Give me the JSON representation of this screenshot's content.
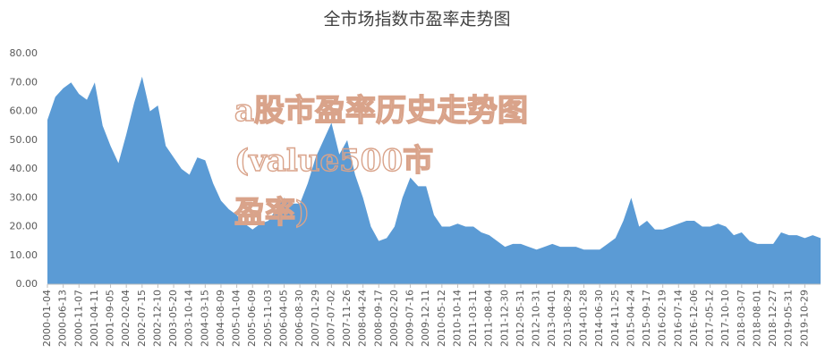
{
  "chart_data": {
    "type": "area",
    "title": "全市场指数市盈率走势图",
    "watermark": [
      "a股市盈率历史走势图",
      "(value500市",
      "盈率)"
    ],
    "color": "#5b9bd5",
    "grid": false,
    "ylim": [
      0,
      80
    ],
    "yticks": [
      {
        "value": 0,
        "label": "0.00"
      },
      {
        "value": 10,
        "label": "10.00"
      },
      {
        "value": 20,
        "label": "20.00"
      },
      {
        "value": 30,
        "label": "30.00"
      },
      {
        "value": 40,
        "label": "40.00"
      },
      {
        "value": 50,
        "label": "50.00"
      },
      {
        "value": 60,
        "label": "60.00"
      },
      {
        "value": 70,
        "label": "70.00"
      },
      {
        "value": 80,
        "label": "80.00"
      }
    ],
    "categories": [
      "2000-01-04",
      null,
      "2000-06-13",
      null,
      "2000-11-07",
      null,
      "2001-04-11",
      null,
      "2001-09-05",
      null,
      "2002-02-04",
      null,
      "2002-07-15",
      null,
      "2002-12-10",
      null,
      "2003-05-20",
      null,
      "2003-10-14",
      null,
      "2004-03-15",
      null,
      "2004-08-09",
      null,
      "2005-01-04",
      null,
      "2005-06-09",
      null,
      "2005-11-03",
      null,
      "2006-04-05",
      null,
      "2006-08-30",
      null,
      "2007-01-29",
      null,
      "2007-07-02",
      null,
      "2007-11-26",
      null,
      "2008-04-24",
      null,
      "2008-09-17",
      null,
      "2009-02-20",
      null,
      "2009-07-16",
      null,
      "2009-12-11",
      null,
      "2010-05-12",
      null,
      "2010-10-14",
      null,
      "2011-03-11",
      null,
      "2011-08-04",
      null,
      "2011-12-30",
      null,
      "2012-05-31",
      null,
      "2012-10-31",
      null,
      "2013-04-01",
      null,
      "2013-08-29",
      null,
      "2014-01-28",
      null,
      "2014-06-30",
      null,
      "2014-11-25",
      null,
      "2015-04-24",
      null,
      "2015-09-17",
      null,
      "2016-02-19",
      null,
      "2016-07-14",
      null,
      "2016-12-06",
      null,
      "2017-05-12",
      null,
      "2017-10-10",
      null,
      "2018-03-07",
      null,
      "2018-08-01",
      null,
      "2018-12-27",
      null,
      "2019-05-31",
      null,
      "2019-10-29",
      null,
      null
    ],
    "values": [
      57,
      65,
      68,
      70,
      66,
      64,
      70,
      55,
      48,
      42,
      52,
      63,
      72,
      60,
      62,
      48,
      44,
      40,
      38,
      44,
      43,
      35,
      29,
      26,
      24,
      21,
      19,
      21,
      22,
      26,
      30,
      28,
      28,
      35,
      44,
      50,
      56,
      45,
      50,
      38,
      30,
      20,
      15,
      16,
      20,
      30,
      37,
      34,
      34,
      24,
      20,
      20,
      21,
      20,
      20,
      18,
      17,
      15,
      13,
      14,
      14,
      13,
      12,
      13,
      14,
      13,
      13,
      13,
      12,
      12,
      12,
      14,
      16,
      22,
      30,
      20,
      22,
      19,
      19,
      20,
      21,
      22,
      22,
      20,
      20,
      21,
      20,
      17,
      18,
      15,
      14,
      14,
      14,
      18,
      17,
      17,
      16,
      17,
      16
    ]
  }
}
